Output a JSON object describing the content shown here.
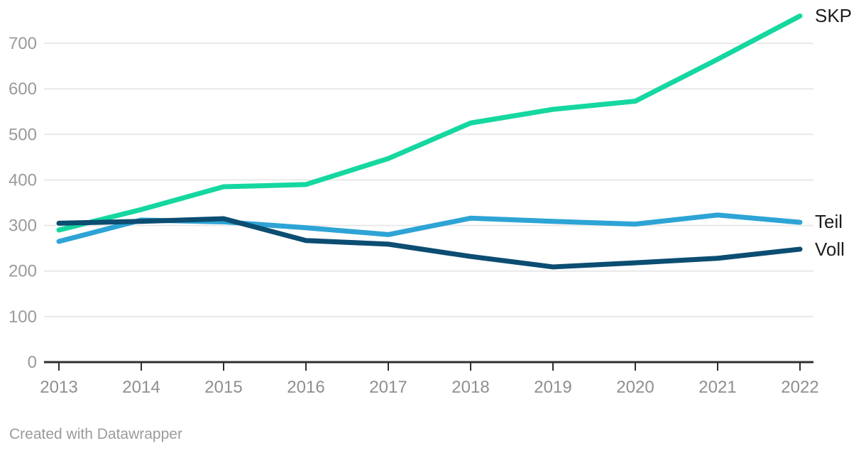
{
  "chart_data": {
    "type": "line",
    "title": "",
    "xlabel": "",
    "ylabel": "",
    "x": [
      2013,
      2014,
      2015,
      2016,
      2017,
      2018,
      2019,
      2020,
      2021,
      2022
    ],
    "series": [
      {
        "name": "SKP",
        "color": "#15d7a0",
        "values": [
          290,
          335,
          385,
          390,
          447,
          525,
          555,
          573,
          665,
          760
        ]
      },
      {
        "name": "Teil",
        "color": "#2da4d5",
        "values": [
          265,
          312,
          308,
          295,
          280,
          316,
          309,
          303,
          323,
          307
        ]
      },
      {
        "name": "Voll",
        "color": "#0c4d72",
        "values": [
          305,
          309,
          315,
          267,
          259,
          232,
          209,
          218,
          228,
          248
        ]
      }
    ],
    "ylim": [
      0,
      760
    ],
    "yticks": [
      0,
      100,
      200,
      300,
      400,
      500,
      600,
      700
    ],
    "grid": "horizontal",
    "legend_position": "right-edge-labels"
  },
  "colors": {
    "background": "#ffffff",
    "grid": "#e9e9e9",
    "axis": "#2e2e2e",
    "tick_label": "#9a9a9a",
    "series_label": "#1d1d1d",
    "footer_text": "#9b9b9b"
  },
  "footer": {
    "attribution": "Created with Datawrapper"
  }
}
